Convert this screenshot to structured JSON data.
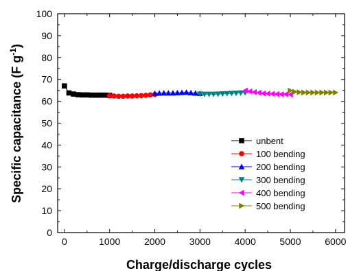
{
  "chart_data": {
    "type": "line",
    "xlabel": "Charge/discharge cycles",
    "ylabel_main": "Specific capacitance (F g",
    "ylabel_sup": "-1",
    "ylabel_close": ")",
    "xlim": [
      -150,
      6200
    ],
    "ylim": [
      0,
      100
    ],
    "x_ticks": [
      0,
      1000,
      2000,
      3000,
      4000,
      5000,
      6000
    ],
    "y_ticks": [
      0,
      10,
      20,
      30,
      40,
      50,
      60,
      70,
      80,
      90,
      100
    ],
    "legend_position": "right-middle",
    "grid": false,
    "series": [
      {
        "name": "unbent",
        "color": "#000000",
        "marker": "square",
        "x": [
          0,
          100,
          200,
          300,
          400,
          500,
          600,
          700,
          800,
          900,
          1000
        ],
        "y": [
          67,
          63.8,
          63.3,
          63.0,
          62.9,
          62.9,
          62.8,
          62.8,
          62.8,
          62.8,
          62.7
        ]
      },
      {
        "name": "100 bending",
        "color": "#ff0000",
        "marker": "circle",
        "x": [
          1000,
          1100,
          1200,
          1300,
          1400,
          1500,
          1600,
          1700,
          1800,
          1900,
          2000
        ],
        "y": [
          62.5,
          62.4,
          62.3,
          62.3,
          62.4,
          62.4,
          62.5,
          62.6,
          62.7,
          62.9,
          63.1
        ]
      },
      {
        "name": "200 bending",
        "color": "#0000ff",
        "marker": "triangle-up",
        "x": [
          2000,
          2100,
          2200,
          2300,
          2400,
          2500,
          2600,
          2700,
          2800,
          2900,
          3000
        ],
        "y": [
          63.6,
          63.7,
          63.8,
          63.8,
          63.8,
          63.9,
          64.0,
          64.1,
          63.9,
          63.7,
          63.6
        ]
      },
      {
        "name": "300 bending",
        "color": "#008080",
        "marker": "triangle-down",
        "x": [
          3000,
          3100,
          3200,
          3300,
          3400,
          3500,
          3600,
          3700,
          3800,
          3900,
          4000
        ],
        "y": [
          63.3,
          63.2,
          63.2,
          63.2,
          63.3,
          63.4,
          63.5,
          63.6,
          63.7,
          63.8,
          63.9
        ]
      },
      {
        "name": "400 bending",
        "color": "#ff00ff",
        "marker": "triangle-left",
        "x": [
          4000,
          4100,
          4200,
          4300,
          4400,
          4500,
          4600,
          4700,
          4800,
          4900,
          5000
        ],
        "y": [
          64.9,
          64.5,
          64.2,
          63.9,
          63.6,
          63.5,
          63.4,
          63.3,
          63.2,
          63.2,
          63.1
        ]
      },
      {
        "name": "500 bending",
        "color": "#808000",
        "marker": "triangle-right",
        "x": [
          5000,
          5100,
          5200,
          5300,
          5400,
          5500,
          5600,
          5700,
          5800,
          5900,
          6000
        ],
        "y": [
          64.9,
          64.3,
          64.1,
          64.0,
          64.0,
          64.0,
          64.0,
          64.0,
          64.0,
          64.0,
          64.0
        ]
      }
    ]
  }
}
